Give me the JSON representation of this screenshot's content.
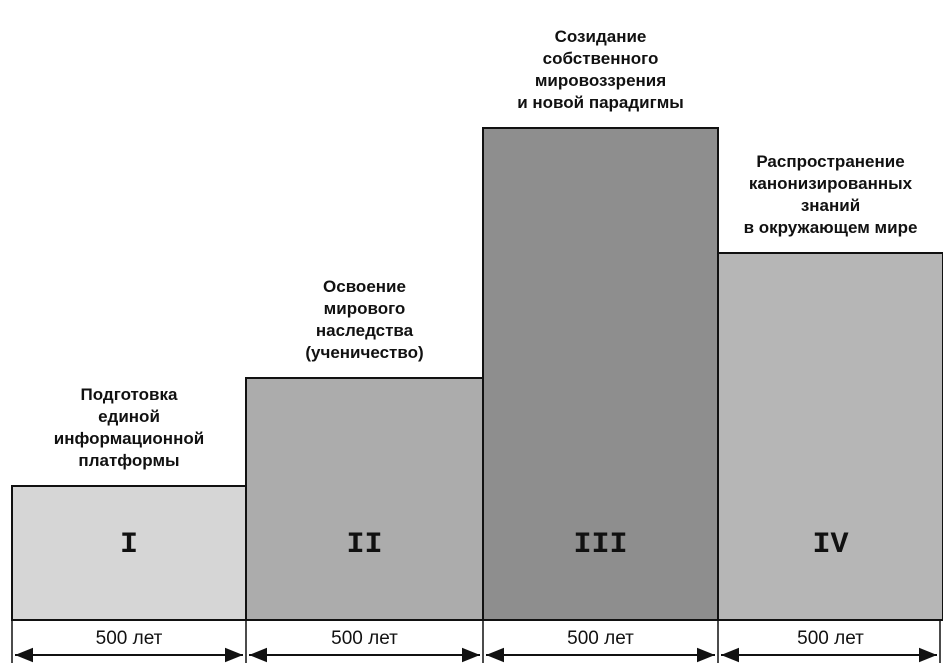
{
  "stages": [
    {
      "label": [
        "Подготовка",
        "единой",
        "информационной",
        "платформы"
      ],
      "numeral": "I",
      "duration": "500 лет"
    },
    {
      "label": [
        "Освоение",
        "мирового",
        "наследства",
        "(ученичество)"
      ],
      "numeral": "II",
      "duration": "500 лет"
    },
    {
      "label": [
        "Созидание",
        "собственного",
        "мировоззрения",
        "и новой парадигмы"
      ],
      "numeral": "III",
      "duration": "500 лет"
    },
    {
      "label": [
        "Распространение",
        "канонизированных",
        "знаний",
        "в окружающем мире"
      ],
      "numeral": "IV",
      "duration": "500 лет"
    }
  ]
}
